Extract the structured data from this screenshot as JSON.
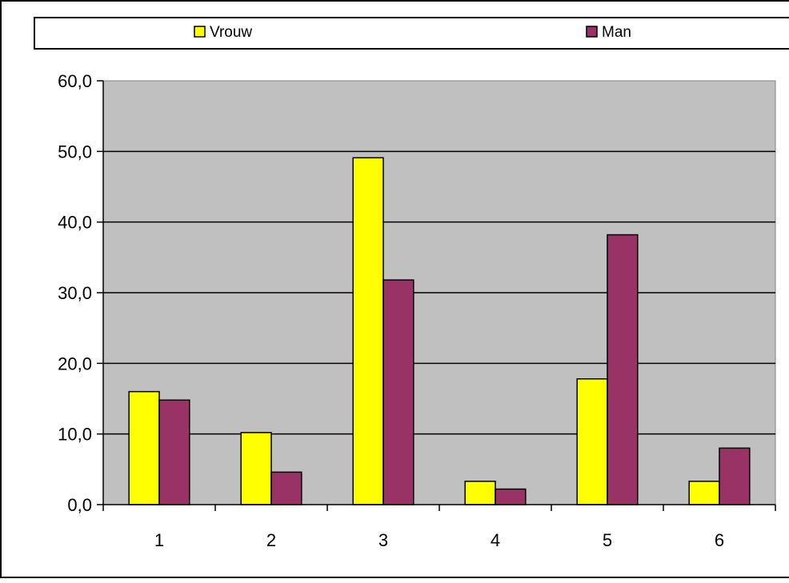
{
  "chart_data": {
    "type": "bar",
    "categories": [
      "1",
      "2",
      "3",
      "4",
      "5",
      "6"
    ],
    "series": [
      {
        "name": "Vrouw",
        "values": [
          16.0,
          10.2,
          49.1,
          3.3,
          17.8,
          3.3
        ],
        "color": "#ffff00"
      },
      {
        "name": "Man",
        "values": [
          14.8,
          4.6,
          31.8,
          2.2,
          38.2,
          8.0
        ],
        "color": "#993366"
      }
    ],
    "ylim": [
      0,
      60
    ],
    "yticks": [
      "0,0",
      "10,0",
      "20,0",
      "30,0",
      "40,0",
      "50,0",
      "60,0"
    ],
    "grid": true,
    "legend_position": "top",
    "plot_background": "#c0c0c0",
    "title": "",
    "xlabel": "",
    "ylabel": ""
  }
}
